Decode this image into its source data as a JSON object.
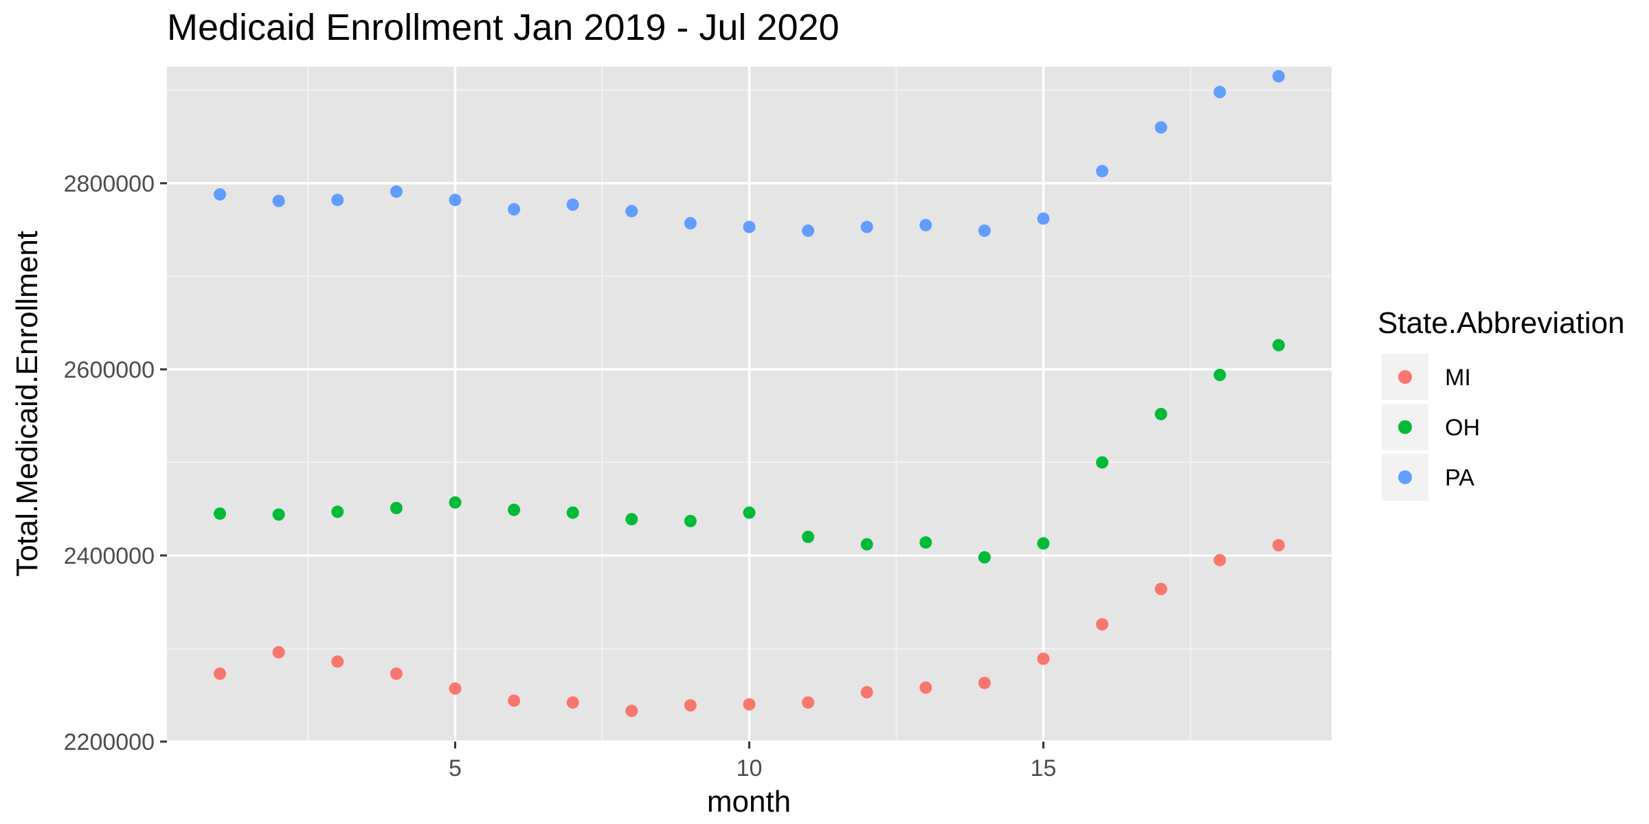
{
  "chart_data": {
    "type": "scatter",
    "title": "Medicaid Enrollment Jan 2019 - Jul 2020",
    "xlabel": "month",
    "ylabel": "Total.Medicaid.Enrollment",
    "xlim": [
      0.1,
      19.9
    ],
    "ylim": [
      2200000,
      2915000
    ],
    "x_ticks": [
      5,
      10,
      15
    ],
    "x_tick_labels": [
      "5",
      "10",
      "15"
    ],
    "y_ticks": [
      2200000,
      2400000,
      2600000,
      2800000
    ],
    "y_tick_labels": [
      "2200000",
      "2400000",
      "2600000",
      "2800000"
    ],
    "grid": true,
    "legend": {
      "title": "State.Abbreviation",
      "position": "right"
    },
    "x": [
      1,
      2,
      3,
      4,
      5,
      6,
      7,
      8,
      9,
      10,
      11,
      12,
      13,
      14,
      15,
      16,
      17,
      18,
      19
    ],
    "series": [
      {
        "name": "MI",
        "color": "#F8766D",
        "values": [
          2273000,
          2296000,
          2286000,
          2273000,
          2257000,
          2244000,
          2242000,
          2233000,
          2239000,
          2240000,
          2242000,
          2253000,
          2258000,
          2263000,
          2289000,
          2326000,
          2364000,
          2395000,
          2411000
        ]
      },
      {
        "name": "OH",
        "color": "#00BA38",
        "values": [
          2445000,
          2444000,
          2447000,
          2451000,
          2457000,
          2449000,
          2446000,
          2439000,
          2437000,
          2446000,
          2420000,
          2412000,
          2414000,
          2398000,
          2413000,
          2500000,
          2552000,
          2594000,
          2626000
        ]
      },
      {
        "name": "PA",
        "color": "#619CFF",
        "values": [
          2788000,
          2781000,
          2782000,
          2791000,
          2782000,
          2772000,
          2777000,
          2770000,
          2757000,
          2753000,
          2749000,
          2753000,
          2755000,
          2749000,
          2762000,
          2813000,
          2860000,
          2898000,
          2915000
        ]
      }
    ]
  },
  "colors": {
    "panel_background": "#E5E5E5",
    "grid_major": "#FFFFFF",
    "grid_minor": "#F2F2F2",
    "legend_key_background": "#F2F2F2"
  }
}
